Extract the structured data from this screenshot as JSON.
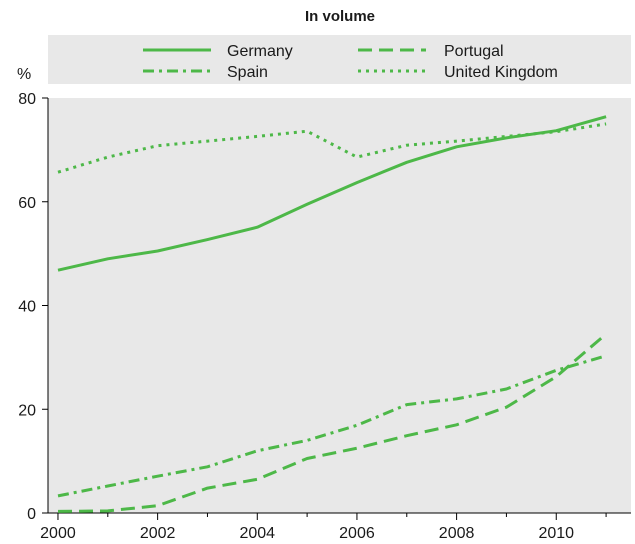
{
  "chart_data": {
    "type": "line",
    "title": "In volume",
    "ylabel": "%",
    "xlabel": "",
    "xlim": [
      1999.8,
      2011.5
    ],
    "ylim": [
      0,
      80
    ],
    "x_ticks": [
      "2000",
      "2002",
      "2004",
      "2006",
      "2008",
      "2010"
    ],
    "y_ticks": [
      "0",
      "20",
      "40",
      "60",
      "80"
    ],
    "grid": false,
    "legend_position": "top",
    "color": "#4db848",
    "series": [
      {
        "name": "Germany",
        "dash": "solid",
        "x": [
          2000,
          2001,
          2002,
          2003,
          2004,
          2005,
          2006,
          2007,
          2008,
          2009,
          2010,
          2011
        ],
        "values": [
          46.8,
          49.0,
          50.5,
          52.7,
          55.1,
          59.5,
          63.7,
          67.6,
          70.6,
          72.3,
          73.7,
          76.4
        ]
      },
      {
        "name": "Portugal",
        "dash": "dashed",
        "x": [
          2000,
          2001,
          2002,
          2003,
          2004,
          2005,
          2006,
          2007,
          2008,
          2009,
          2010,
          2011
        ],
        "values": [
          0.3,
          0.4,
          1.4,
          4.8,
          6.5,
          10.5,
          12.5,
          14.9,
          17.0,
          20.4,
          26.3,
          34.5
        ]
      },
      {
        "name": "Spain",
        "dash": "dashdot",
        "x": [
          2000,
          2001,
          2002,
          2003,
          2004,
          2005,
          2006,
          2007,
          2008,
          2009,
          2010,
          2011
        ],
        "values": [
          3.3,
          5.2,
          7.1,
          8.9,
          12.0,
          14.0,
          16.9,
          20.9,
          22.0,
          23.9,
          27.5,
          30.3
        ]
      },
      {
        "name": "United Kingdom",
        "dash": "dotted",
        "x": [
          2000,
          2001,
          2002,
          2003,
          2004,
          2005,
          2006,
          2007,
          2008,
          2009,
          2010,
          2011
        ],
        "values": [
          65.7,
          68.6,
          70.8,
          71.7,
          72.6,
          73.6,
          68.6,
          70.9,
          71.7,
          72.6,
          73.5,
          75.0
        ]
      }
    ]
  }
}
